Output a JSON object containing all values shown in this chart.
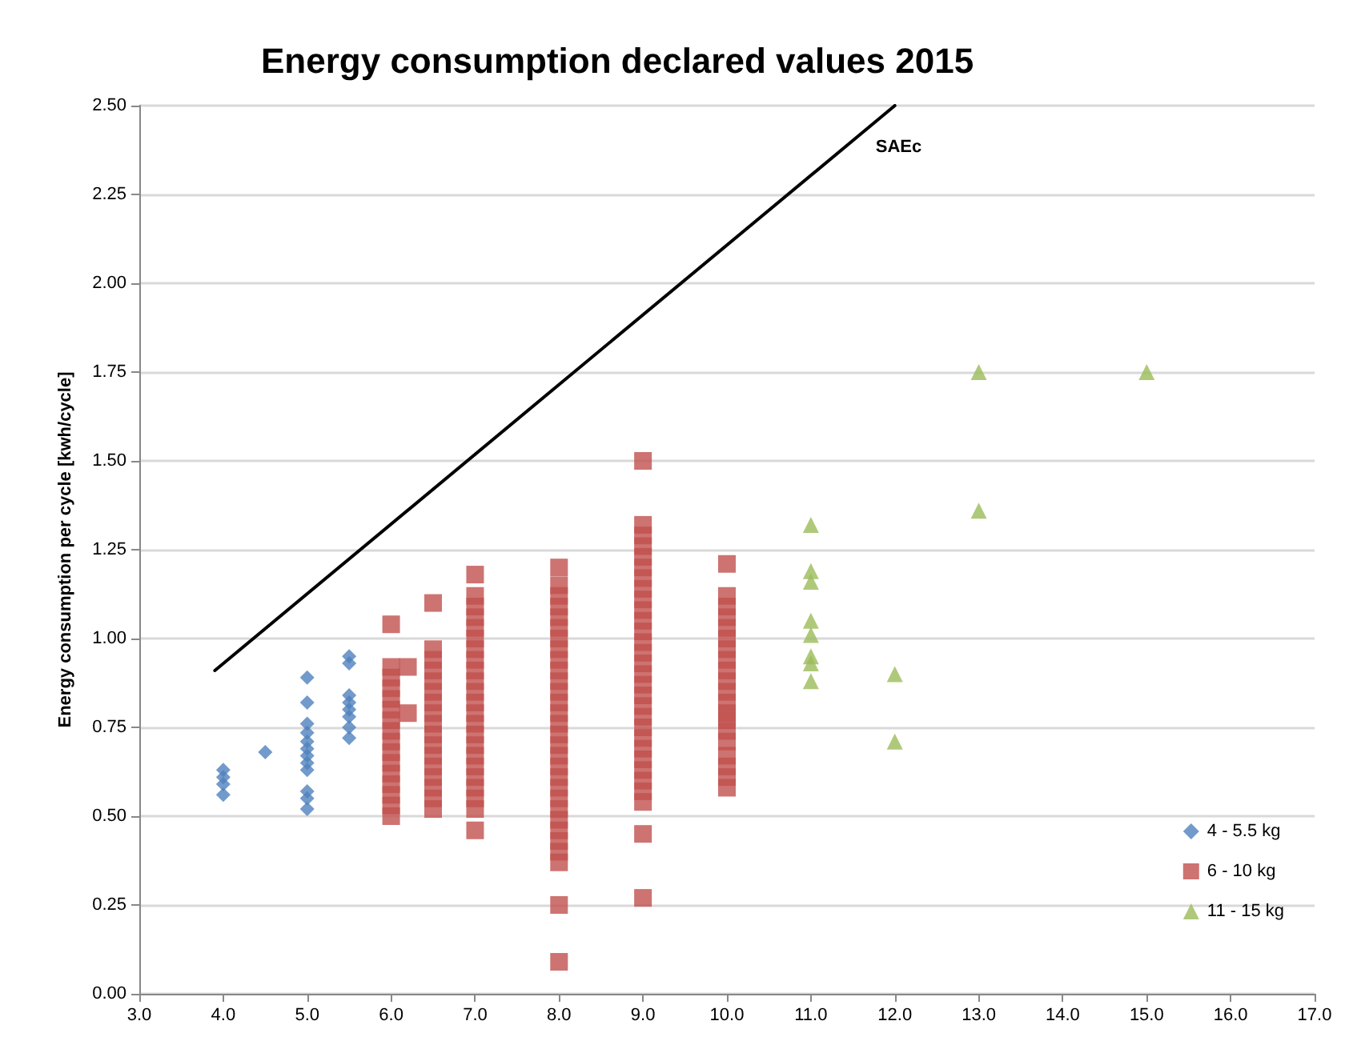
{
  "chart_data": {
    "type": "scatter",
    "title": "Energy consumption declared values 2015",
    "ylabel": "Energy consumption per cycle [kwh/cycle]",
    "xlim": [
      3,
      17
    ],
    "xticks": [
      {
        "value": 3,
        "label": "3.0"
      },
      {
        "value": 4,
        "label": "4.0"
      },
      {
        "value": 5,
        "label": "5.0"
      },
      {
        "value": 6,
        "label": "6.0"
      },
      {
        "value": 7,
        "label": "7.0"
      },
      {
        "value": 8,
        "label": "8.0"
      },
      {
        "value": 9,
        "label": "9.0"
      },
      {
        "value": 10,
        "label": "10.0"
      },
      {
        "value": 11,
        "label": "11.0"
      },
      {
        "value": 12,
        "label": "12.0"
      },
      {
        "value": 13,
        "label": "13.0"
      },
      {
        "value": 14,
        "label": "14.0"
      },
      {
        "value": 15,
        "label": "15.0"
      },
      {
        "value": 16,
        "label": "16.0"
      },
      {
        "value": 17,
        "label": "17.0"
      }
    ],
    "ylim": [
      0,
      2.5
    ],
    "yticks": [
      {
        "value": 0,
        "label": "0.00"
      },
      {
        "value": 0.25,
        "label": "0.25"
      },
      {
        "value": 0.5,
        "label": "0.50"
      },
      {
        "value": 0.75,
        "label": "0.75"
      },
      {
        "value": 1,
        "label": "1.00"
      },
      {
        "value": 1.25,
        "label": "1.25"
      },
      {
        "value": 1.5,
        "label": "1.50"
      },
      {
        "value": 1.75,
        "label": "1.75"
      },
      {
        "value": 2,
        "label": "2.00"
      },
      {
        "value": 2.25,
        "label": "2.25"
      },
      {
        "value": 2.5,
        "label": "2.50"
      }
    ],
    "grid": "y",
    "legend": "bottom right",
    "series": [
      {
        "name": "4 - 5.5 kg",
        "color": "#4f81bd",
        "marker": "diamond",
        "x": [
          4,
          4,
          4,
          4,
          4.5,
          5,
          5,
          5,
          5,
          5,
          5,
          5,
          5,
          5,
          5,
          5,
          5,
          5.5,
          5.5,
          5.5,
          5.5,
          5.5,
          5.5,
          5.5,
          5.5
        ],
        "values": [
          0.56,
          0.59,
          0.61,
          0.63,
          0.68,
          0.52,
          0.55,
          0.57,
          0.63,
          0.65,
          0.67,
          0.69,
          0.71,
          0.735,
          0.76,
          0.82,
          0.89,
          0.72,
          0.75,
          0.78,
          0.8,
          0.82,
          0.84,
          0.93,
          0.95
        ]
      },
      {
        "name": "6 - 10 kg",
        "color": "#c0504d",
        "marker": "square",
        "x": [
          6,
          6,
          6,
          6,
          6,
          6,
          6,
          6,
          6,
          6,
          6,
          6,
          6,
          6,
          6,
          6,
          6.2,
          6.2,
          6.5,
          6.5,
          6.5,
          6.5,
          6.5,
          6.5,
          6.5,
          6.5,
          6.5,
          6.5,
          6.5,
          6.5,
          6.5,
          6.5,
          6.5,
          6.5,
          6.5,
          7,
          7,
          7,
          7,
          7,
          7,
          7,
          7,
          7,
          7,
          7,
          7,
          7,
          7,
          7,
          7,
          7,
          7,
          7,
          7,
          7,
          7,
          7,
          8,
          8,
          8,
          8,
          8,
          8,
          8,
          8,
          8,
          8,
          8,
          8,
          8,
          8,
          8,
          8,
          8,
          8,
          8,
          8,
          8,
          8,
          8,
          8,
          8,
          8,
          8,
          8,
          8,
          8,
          9,
          9,
          9,
          9,
          9,
          9,
          9,
          9,
          9,
          9,
          9,
          9,
          9,
          9,
          9,
          9,
          9,
          9,
          9,
          9,
          9,
          9,
          9,
          9,
          9,
          9,
          9,
          9,
          9,
          9,
          10,
          10,
          10,
          10,
          10,
          10,
          10,
          10,
          10,
          10,
          10,
          10,
          10,
          10,
          10,
          10,
          10,
          10,
          10,
          10
        ],
        "values": [
          1.04,
          0.92,
          0.89,
          0.86,
          0.83,
          0.8,
          0.77,
          0.74,
          0.71,
          0.68,
          0.65,
          0.62,
          0.59,
          0.56,
          0.53,
          0.5,
          0.92,
          0.79,
          1.1,
          0.97,
          0.94,
          0.91,
          0.88,
          0.85,
          0.82,
          0.79,
          0.76,
          0.73,
          0.7,
          0.67,
          0.64,
          0.61,
          0.58,
          0.55,
          0.52,
          1.18,
          1.12,
          1.09,
          1.06,
          1.03,
          1.0,
          0.97,
          0.94,
          0.91,
          0.88,
          0.85,
          0.82,
          0.79,
          0.76,
          0.73,
          0.7,
          0.67,
          0.64,
          0.61,
          0.58,
          0.55,
          0.52,
          0.46,
          1.2,
          1.15,
          1.12,
          1.09,
          1.06,
          1.03,
          1.0,
          0.97,
          0.94,
          0.91,
          0.88,
          0.85,
          0.82,
          0.79,
          0.76,
          0.73,
          0.7,
          0.67,
          0.64,
          0.61,
          0.58,
          0.55,
          0.52,
          0.49,
          0.46,
          0.43,
          0.4,
          0.37,
          0.25,
          0.09,
          1.5,
          1.32,
          1.29,
          1.26,
          1.23,
          1.2,
          1.17,
          1.14,
          1.11,
          1.08,
          1.05,
          1.02,
          0.99,
          0.96,
          0.93,
          0.9,
          0.87,
          0.84,
          0.81,
          0.78,
          0.75,
          0.72,
          0.69,
          0.66,
          0.63,
          0.6,
          0.57,
          0.54,
          0.45,
          0.27,
          1.21,
          1.12,
          1.09,
          1.06,
          1.03,
          1.0,
          0.97,
          0.94,
          0.91,
          0.88,
          0.85,
          0.82,
          0.79,
          0.77,
          0.74,
          0.71,
          0.67,
          0.64,
          0.61,
          0.58
        ]
      },
      {
        "name": "11 - 15 kg",
        "color": "#9bbb59",
        "marker": "triangle",
        "x": [
          11,
          11,
          11,
          11,
          11,
          11,
          11,
          11,
          12,
          12,
          13,
          13,
          15
        ],
        "values": [
          1.32,
          1.19,
          1.16,
          1.05,
          1.01,
          0.95,
          0.93,
          0.88,
          0.9,
          0.71,
          1.75,
          1.36,
          1.75
        ]
      },
      {
        "type": "line",
        "name": "SAEc",
        "color": "#000000",
        "marker": "none",
        "x": [
          3.9,
          12.0
        ],
        "values": [
          0.91,
          2.5
        ]
      }
    ]
  }
}
